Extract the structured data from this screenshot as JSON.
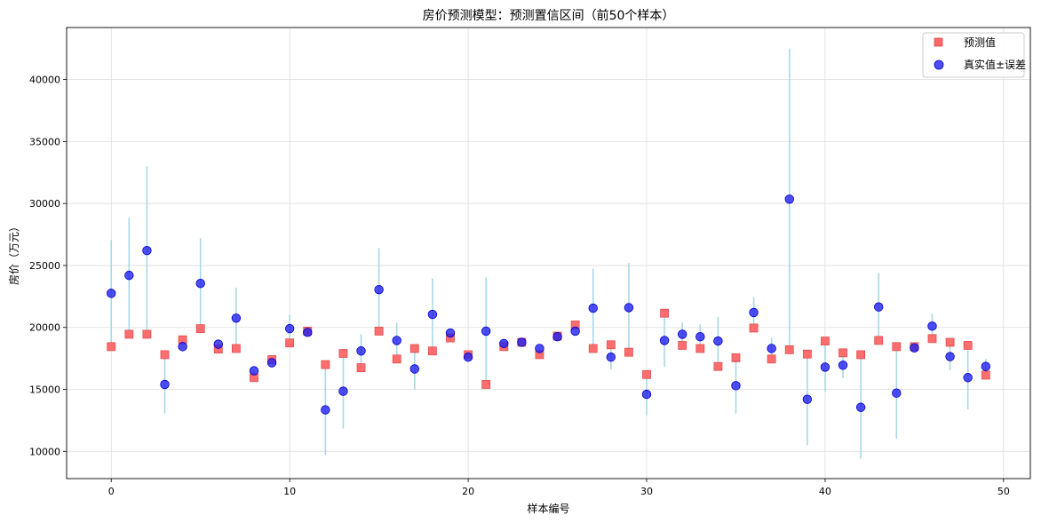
{
  "chart_data": {
    "type": "scatter",
    "title": "房价预测模型：预测置信区间（前50个样本）",
    "xlabel": "样本编号",
    "ylabel": "房价（万元）",
    "xlim": [
      -2.5,
      51.5
    ],
    "ylim": [
      7800,
      44200
    ],
    "xticks": [
      0,
      10,
      20,
      30,
      40,
      50
    ],
    "yticks": [
      10000,
      15000,
      20000,
      25000,
      30000,
      35000,
      40000
    ],
    "grid": true,
    "legend_position": "top-right",
    "x": [
      0,
      1,
      2,
      3,
      4,
      5,
      6,
      7,
      8,
      9,
      10,
      11,
      12,
      13,
      14,
      15,
      16,
      17,
      18,
      19,
      20,
      21,
      22,
      23,
      24,
      25,
      26,
      27,
      28,
      29,
      30,
      31,
      32,
      33,
      34,
      35,
      36,
      37,
      38,
      39,
      40,
      41,
      42,
      43,
      44,
      45,
      46,
      47,
      48,
      49
    ],
    "series": [
      {
        "name": "预测值",
        "marker": "square",
        "color": "#ff6666",
        "values": [
          18450,
          19450,
          19450,
          17800,
          19000,
          19900,
          18250,
          18300,
          15950,
          17400,
          18750,
          19700,
          17000,
          17900,
          16750,
          19700,
          17450,
          18300,
          18100,
          19150,
          17800,
          15400,
          18450,
          18800,
          17800,
          19300,
          20200,
          18300,
          18600,
          18000,
          16200,
          21150,
          18550,
          18300,
          16850,
          17550,
          19950,
          17450,
          18200,
          17850,
          18900,
          17950,
          17800,
          18950,
          18450,
          18450,
          19100,
          18800,
          18550,
          16150
        ]
      },
      {
        "name": "真实值±误差",
        "marker": "circle",
        "color": "#0000ee",
        "values": [
          22750,
          24200,
          26200,
          15400,
          18450,
          23550,
          18650,
          20750,
          16500,
          17150,
          19900,
          19600,
          13350,
          14850,
          18100,
          23050,
          18950,
          16650,
          21050,
          19550,
          17600,
          19700,
          18700,
          18800,
          18300,
          19250,
          19700,
          21550,
          17600,
          21600,
          14600,
          18950,
          19450,
          19250,
          18900,
          15300,
          21200,
          18300,
          30350,
          14200,
          16800,
          16950,
          13550,
          21650,
          14700,
          18350,
          20100,
          17650,
          15950,
          16850
        ]
      }
    ],
    "error_low": [
      18450,
      19450,
      19450,
      13050,
      18450,
      19900,
      18250,
      18300,
      15950,
      17150,
      18750,
      19600,
      9700,
      11850,
      16750,
      19700,
      17450,
      15000,
      18100,
      19150,
      17600,
      15400,
      18450,
      18800,
      17800,
      19250,
      19700,
      18300,
      16600,
      18000,
      12900,
      16800,
      18550,
      18300,
      16850,
      13050,
      19950,
      17450,
      18200,
      10500,
      14800,
      15900,
      9400,
      18950,
      11000,
      18350,
      19100,
      16550,
      13400,
      16150
    ],
    "error_high": [
      27050,
      28850,
      33000,
      17800,
      19000,
      27200,
      18650,
      23200,
      16500,
      17400,
      21000,
      19700,
      17000,
      17900,
      19450,
      26400,
      20400,
      18300,
      23950,
      19550,
      17800,
      24050,
      18700,
      18800,
      18300,
      19300,
      20200,
      24750,
      18600,
      25200,
      16200,
      21150,
      20400,
      20250,
      20850,
      17550,
      22450,
      19150,
      42500,
      17850,
      18900,
      17950,
      17800,
      24400,
      18450,
      18450,
      21100,
      18800,
      18550,
      17450
    ]
  }
}
